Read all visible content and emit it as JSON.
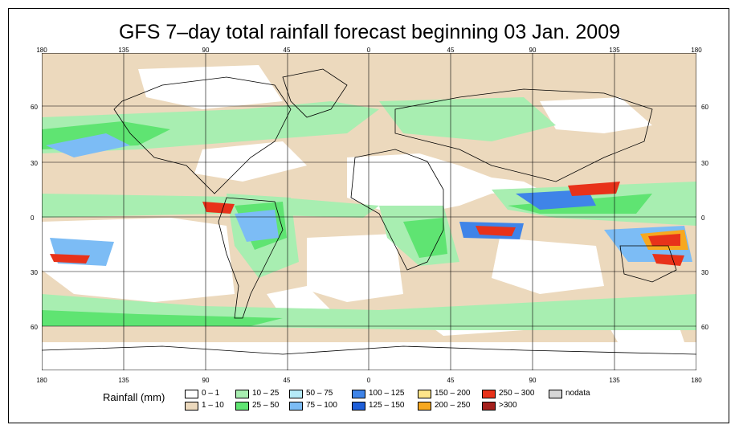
{
  "title": "GFS 7–day total rainfall forecast beginning 03 Jan. 2009",
  "map": {
    "lon_labels": [
      "180",
      "135",
      "90",
      "45",
      "0",
      "45",
      "90",
      "135",
      "180"
    ],
    "lat_labels_left": [
      "60",
      "30",
      "0",
      "30",
      "60"
    ],
    "lat_labels_right": [
      "60",
      "30",
      "0",
      "30",
      "60"
    ]
  },
  "legend": {
    "title": "Rainfall (mm)",
    "items": [
      {
        "label": "0 – 1",
        "color": "#ffffff"
      },
      {
        "label": "1 – 10",
        "color": "#ecd9bd"
      },
      {
        "label": "10 – 25",
        "color": "#a8eeb1"
      },
      {
        "label": "25 – 50",
        "color": "#5fe472"
      },
      {
        "label": "50 – 75",
        "color": "#b5eaf7"
      },
      {
        "label": "75 – 100",
        "color": "#7cbcf5"
      },
      {
        "label": "100 – 125",
        "color": "#3f84e8"
      },
      {
        "label": "125 – 150",
        "color": "#1f5fd8"
      },
      {
        "label": "150 – 200",
        "color": "#ffe58a"
      },
      {
        "label": "200 – 250",
        "color": "#f7a81f"
      },
      {
        "label": "250 – 300",
        "color": "#e8321a"
      },
      {
        "label": ">300",
        "color": "#a4201c"
      },
      {
        "label": "nodata",
        "color": "#d6d6d6"
      }
    ]
  }
}
